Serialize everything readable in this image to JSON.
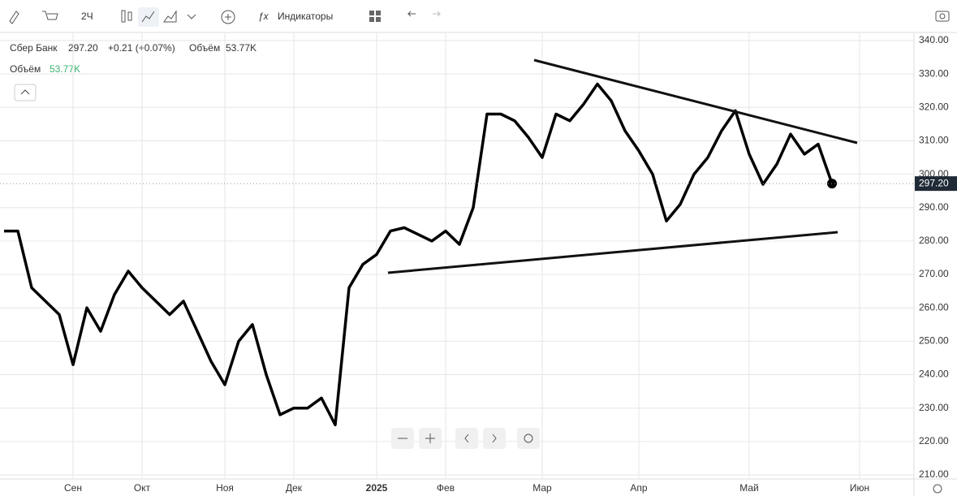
{
  "toolbar": {
    "interval": "2Ч",
    "indicators": "Индикаторы"
  },
  "chart_data": {
    "type": "line",
    "legend": {
      "price": "297.20",
      "change": "+0.21 (+0.07%)",
      "volume_label": "Объём",
      "volume": "53.77K"
    },
    "volume_legend": {
      "label": "Объём",
      "value": "53.77K"
    },
    "categories": [
      null,
      null,
      null,
      null,
      null,
      "Сен",
      null,
      null,
      null,
      null,
      "Окт",
      null,
      null,
      null,
      null,
      null,
      "Ноя",
      null,
      null,
      null,
      null,
      "Дек",
      null,
      null,
      null,
      null,
      null,
      "2025",
      null,
      null,
      null,
      null,
      "Фев",
      null,
      null,
      null,
      null,
      null,
      null,
      "Мар",
      null,
      null,
      null,
      null,
      null,
      null,
      "Апр",
      null,
      null,
      null,
      null,
      null,
      null,
      null,
      "Май",
      null,
      null,
      null,
      null,
      null,
      null,
      null,
      "Июн"
    ],
    "series": [
      {
        "name": "Сбер Банк",
        "color": "#000000",
        "values": [
          283,
          283,
          266,
          262,
          258,
          243,
          260,
          253,
          264,
          271,
          266,
          262,
          258,
          262,
          253,
          244,
          237,
          250,
          255,
          240,
          228,
          230,
          230,
          233,
          225,
          266,
          273,
          276,
          283,
          284,
          282,
          280,
          283,
          279,
          290,
          318,
          318,
          316,
          311,
          305,
          318,
          316,
          321,
          327,
          322,
          313,
          307,
          300,
          286,
          291,
          300,
          305,
          313,
          319,
          306,
          297,
          303,
          312,
          306,
          309,
          297.2,
          null,
          null
        ]
      }
    ],
    "last_label": {
      "value": 297.2,
      "label": "297.20"
    },
    "ylim": [
      210,
      340
    ],
    "yticks": [
      {
        "value": 210,
        "label": "210.00"
      },
      {
        "value": 220,
        "label": "220.00"
      },
      {
        "value": 230,
        "label": "230.00"
      },
      {
        "value": 240,
        "label": "240.00"
      },
      {
        "value": 250,
        "label": "250.00"
      },
      {
        "value": 260,
        "label": "260.00"
      },
      {
        "value": 270,
        "label": "270.00"
      },
      {
        "value": 280,
        "label": "280.00"
      },
      {
        "value": 290,
        "label": "290.00"
      },
      {
        "value": 300,
        "label": "300.00"
      },
      {
        "value": 310,
        "label": "310.00"
      },
      {
        "value": 320,
        "label": "320.00"
      },
      {
        "value": 330,
        "label": "330.00"
      },
      {
        "value": 340,
        "label": "340.00"
      }
    ],
    "grid": true
  }
}
